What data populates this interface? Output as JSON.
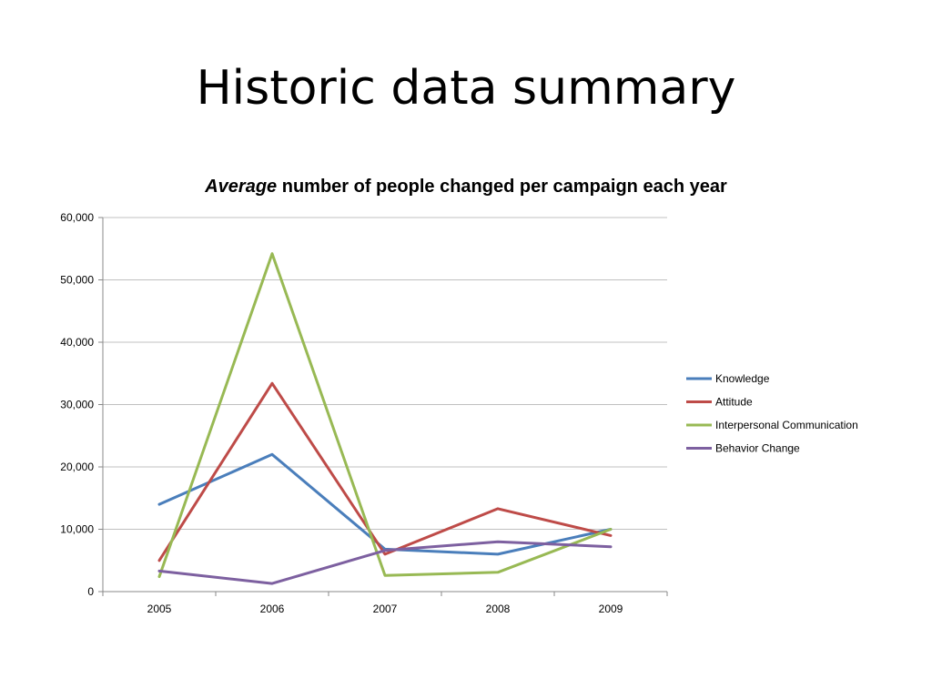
{
  "slide": {
    "title": "Historic data summary"
  },
  "chart_data": {
    "type": "line",
    "title_emphasis": "Average",
    "title_rest": " number of people changed per campaign each year",
    "xlabel": "",
    "ylabel": "",
    "categories": [
      "2005",
      "2006",
      "2007",
      "2008",
      "2009"
    ],
    "ylim": [
      0,
      60000
    ],
    "yticks": [
      0,
      10000,
      20000,
      30000,
      40000,
      50000,
      60000
    ],
    "ytick_labels": [
      "0",
      "10,000",
      "20,000",
      "30,000",
      "40,000",
      "50,000",
      "60,000"
    ],
    "grid": true,
    "legend_position": "right",
    "series": [
      {
        "name": "Knowledge",
        "color": "#4a7ebb",
        "values": [
          14000,
          22000,
          6800,
          6000,
          10000
        ]
      },
      {
        "name": "Attitude",
        "color": "#be4b48",
        "values": [
          5000,
          33400,
          6000,
          13300,
          9000
        ]
      },
      {
        "name": "Interpersonal Communication",
        "color": "#98b954",
        "values": [
          2400,
          54200,
          2600,
          3100,
          10000
        ]
      },
      {
        "name": "Behavior Change",
        "color": "#7d60a0",
        "values": [
          3300,
          1300,
          6600,
          8000,
          7200
        ]
      }
    ]
  }
}
